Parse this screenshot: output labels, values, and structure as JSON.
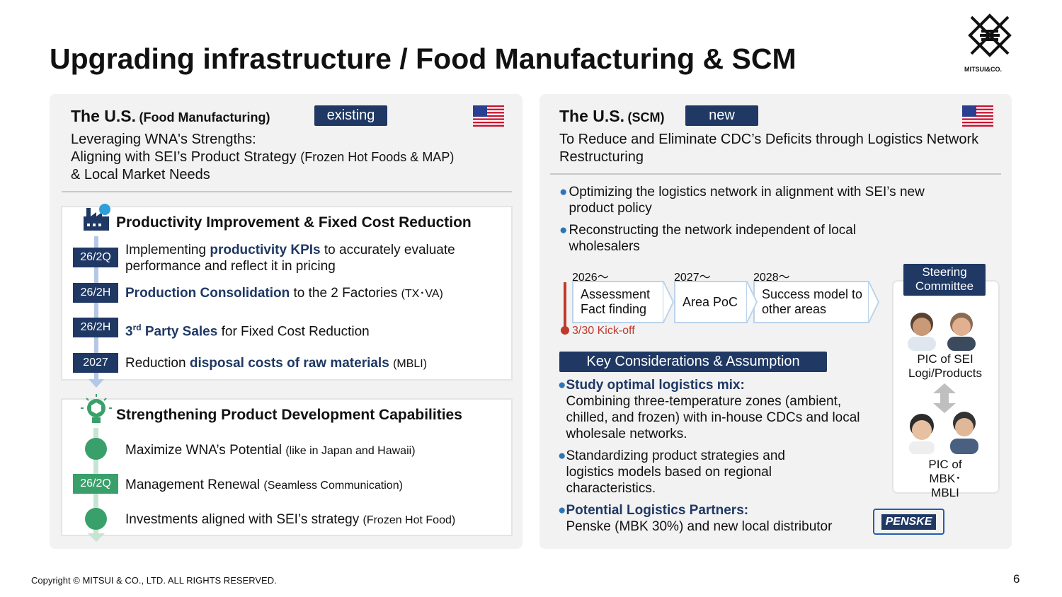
{
  "header": {
    "title": "Upgrading infrastructure / Food Manufacturing & SCM",
    "logo_text": "MITSUI&CO."
  },
  "left": {
    "heading": "The U.S.",
    "heading_note": "(Food Manufacturing)",
    "badge": "existing",
    "subtitle": {
      "line1": "Leveraging WNA's Strengths:",
      "line2": "Aligning with SEI’s Product Strategy",
      "line2_note": "(Frozen Hot Foods & MAP)",
      "line3": "& Local Market Needs"
    },
    "section1": {
      "title": "Productivity Improvement & Fixed Cost Reduction",
      "items": [
        {
          "tag": "26/2Q",
          "pre": "Implementing",
          "em": "productivity KPIs",
          "post": "to accurately evaluate performance and reflect it in pricing"
        },
        {
          "tag": "26/2H",
          "em": "Production Consolidation",
          "post": "to the 2 Factories",
          "note": "(TX･VA)"
        },
        {
          "tag": "26/2H",
          "em": "3",
          "sup": "rd",
          "em_rest": "Party Sales",
          "post": "for Fixed Cost Reduction"
        },
        {
          "tag": "2027",
          "pre": "Reduction",
          "em": "disposal costs of raw materials",
          "note": "(MBLI)"
        }
      ]
    },
    "section2": {
      "title": "Strengthening Product Development Capabilities",
      "items": [
        {
          "pre": "Maximize WNA’s Potential",
          "note": "(like in Japan and Hawaii)"
        },
        {
          "tag": "26/2Q",
          "pre": "Management Renewal",
          "note": "(Seamless Communication)"
        },
        {
          "pre": "Investments aligned with SEI’s strategy",
          "note": "(Frozen Hot Food)"
        }
      ]
    }
  },
  "right": {
    "heading": "The U.S.",
    "heading_note": "(SCM)",
    "badge": "new",
    "subtitle": "To Reduce and Eliminate CDC’s Deficits through Logistics Network Restructuring",
    "bullets": [
      "Optimizing the logistics network in alignment with SEI’s new product policy",
      "Reconstructing the network independent of local wholesalers"
    ],
    "timeline": {
      "steps": [
        {
          "year": "2026〜",
          "label": "Assessment Fact finding"
        },
        {
          "year": "2027〜",
          "label": "Area PoC"
        },
        {
          "year": "2028〜",
          "label": "Success model to other areas"
        }
      ],
      "kickoff": "3/30 Kick-off"
    },
    "key": {
      "title": "Key Considerations & Assumption",
      "items": [
        {
          "em": "Study optimal logistics mix:",
          "text": "Combining three-temperature zones (ambient, chilled, and frozen) with in-house CDCs and local wholesale networks."
        },
        {
          "text": "Standardizing product strategies and logistics models based on regional characteristics."
        },
        {
          "em": "Potential Logistics Partners:",
          "text": "Penske (MBK 30%) and new local distributor"
        }
      ]
    },
    "partner_logo": "PENSKE",
    "committee": {
      "title": "Steering Committee",
      "group1": "PIC of SEI Logi/Products",
      "group2": "PIC of MBK･MBLI"
    }
  },
  "footer": {
    "copyright": "Copyright © MITSUI & CO., LTD. ALL RIGHTS RESERVED.",
    "page": "6"
  }
}
